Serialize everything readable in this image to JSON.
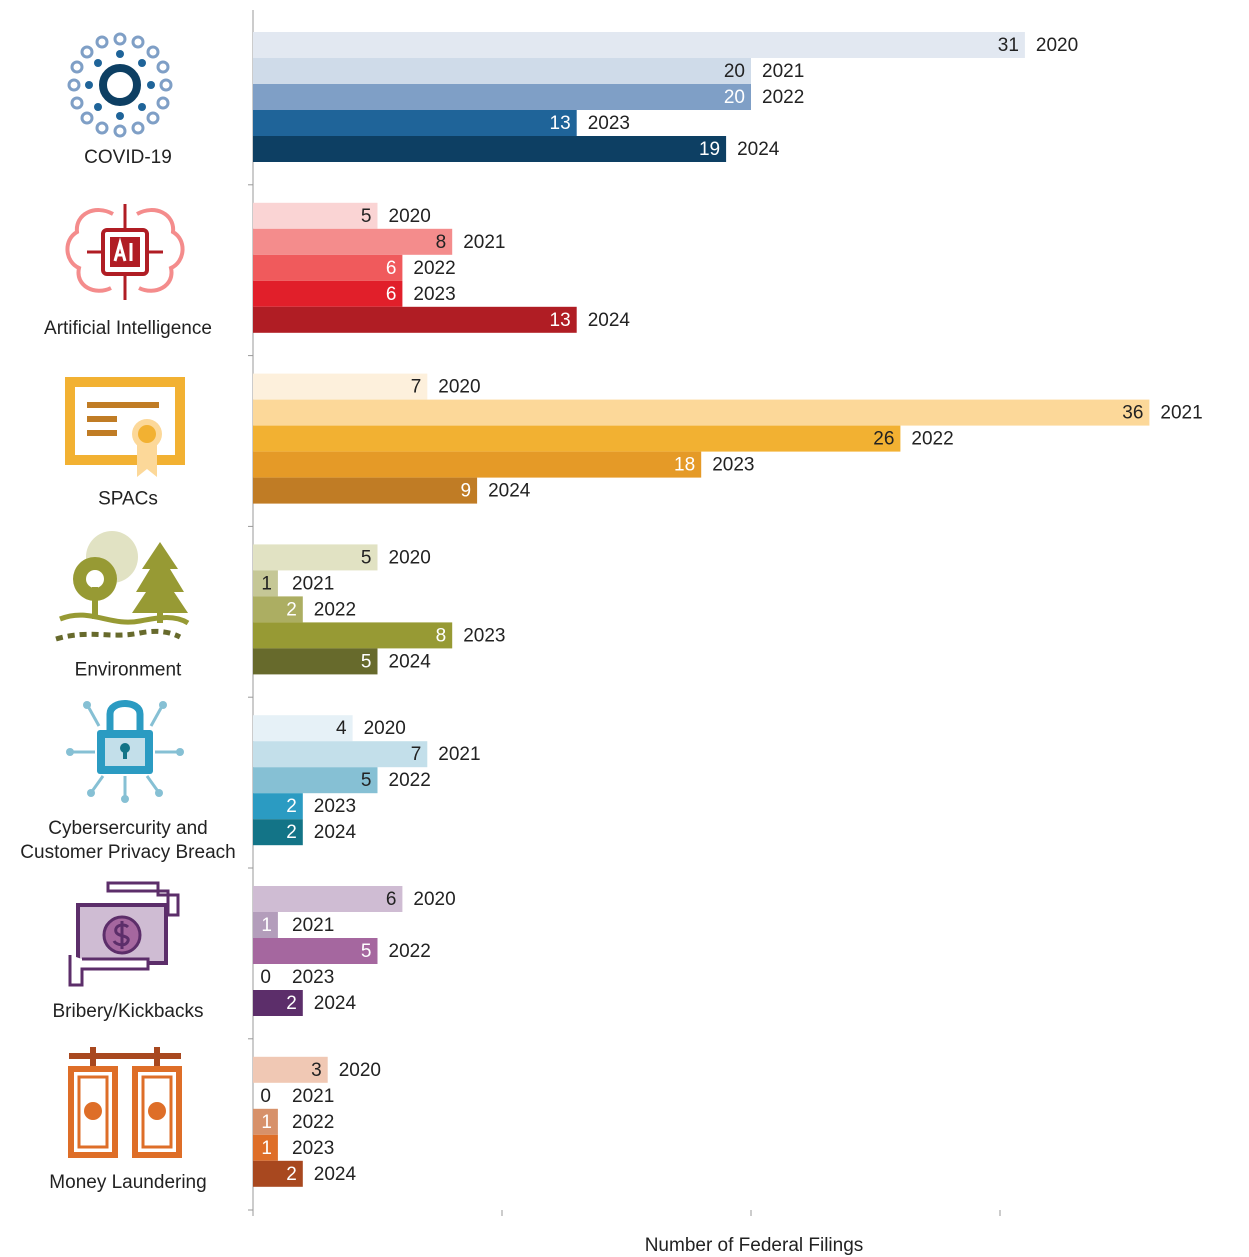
{
  "chart_data": {
    "type": "bar",
    "orientation": "horizontal",
    "xlabel": "Number of Federal Filings",
    "xlim": [
      0,
      40
    ],
    "xticks": [
      0,
      10,
      20,
      30
    ],
    "series_names": [
      "2020",
      "2021",
      "2022",
      "2023",
      "2024"
    ],
    "groups": [
      {
        "name": "COVID-19",
        "values": [
          31,
          20,
          20,
          13,
          19
        ],
        "colors": [
          "#e2e8f1",
          "#cfdbe9",
          "#7f9fc6",
          "#1f6499",
          "#0d3f63"
        ]
      },
      {
        "name": "Artificial Intelligence",
        "values": [
          5,
          8,
          6,
          6,
          13
        ],
        "colors": [
          "#fad4d4",
          "#f48c8c",
          "#f05a5c",
          "#e11f2a",
          "#b01d24"
        ]
      },
      {
        "name": "SPACs",
        "values": [
          7,
          36,
          26,
          18,
          9
        ],
        "colors": [
          "#fdf0dc",
          "#fcd899",
          "#f2b132",
          "#e59a27",
          "#c07c25"
        ]
      },
      {
        "name": "Environment",
        "values": [
          5,
          1,
          2,
          8,
          5
        ],
        "colors": [
          "#e1e2c3",
          "#c5c796",
          "#acae62",
          "#979a34",
          "#676a2c"
        ]
      },
      {
        "name": "Cybersercurity and\nCustomer Privacy Breach",
        "values": [
          4,
          7,
          5,
          2,
          2
        ],
        "colors": [
          "#e6f1f7",
          "#c3dfea",
          "#86c0d4",
          "#2b9bc2",
          "#137487"
        ]
      },
      {
        "name": "Bribery/Kickbacks",
        "values": [
          6,
          1,
          5,
          0,
          2
        ],
        "colors": [
          "#cfbcd3",
          "#b39dbb",
          "#a5679f",
          "#8a4f8a",
          "#5c2e6a"
        ]
      },
      {
        "name": "Money Laundering",
        "values": [
          3,
          0,
          1,
          1,
          2
        ],
        "colors": [
          "#f0c8b4",
          "#e8b295",
          "#d7916a",
          "#de6e28",
          "#a8481f"
        ]
      }
    ]
  }
}
